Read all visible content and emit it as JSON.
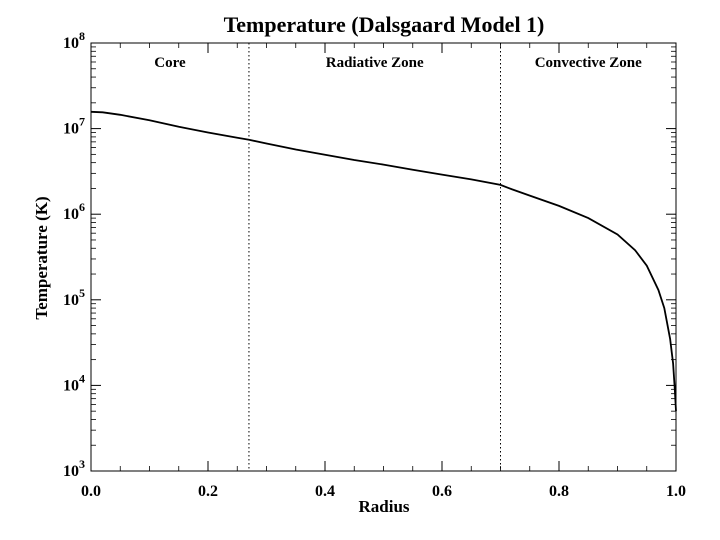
{
  "chart_data": {
    "type": "line",
    "title": "Temperature (Dalsgaard Model 1)",
    "xlabel": "Radius",
    "ylabel": "Temperature (K)",
    "xlim": [
      0.0,
      1.0
    ],
    "ylim": [
      1000,
      100000000
    ],
    "yscale": "log",
    "x_ticks": [
      "0.0",
      "0.2",
      "0.4",
      "0.6",
      "0.8",
      "1.0"
    ],
    "y_ticks": [
      {
        "base": "10",
        "exp": "3"
      },
      {
        "base": "10",
        "exp": "4"
      },
      {
        "base": "10",
        "exp": "5"
      },
      {
        "base": "10",
        "exp": "6"
      },
      {
        "base": "10",
        "exp": "7"
      },
      {
        "base": "10",
        "exp": "8"
      }
    ],
    "zones": [
      {
        "name": "Core",
        "from": 0.0,
        "to": 0.27
      },
      {
        "name": "Radiative Zone",
        "from": 0.27,
        "to": 0.7
      },
      {
        "name": "Convective Zone",
        "from": 0.7,
        "to": 1.0
      }
    ],
    "boundaries": [
      0.27,
      0.7
    ],
    "series": [
      {
        "name": "Temperature",
        "x": [
          0.0,
          0.02,
          0.05,
          0.1,
          0.15,
          0.2,
          0.25,
          0.27,
          0.3,
          0.35,
          0.4,
          0.45,
          0.5,
          0.55,
          0.6,
          0.65,
          0.7,
          0.72,
          0.75,
          0.8,
          0.85,
          0.9,
          0.93,
          0.95,
          0.97,
          0.98,
          0.99,
          0.995,
          0.998,
          1.0
        ],
        "y": [
          15700000,
          15500000,
          14500000,
          12500000,
          10500000,
          9000000,
          7800000,
          7400000,
          6700000,
          5700000,
          4950000,
          4300000,
          3800000,
          3300000,
          2900000,
          2550000,
          2200000,
          1950000,
          1650000,
          1250000,
          900000,
          580000,
          380000,
          250000,
          130000,
          80000,
          35000,
          18000,
          9000,
          5000
        ]
      }
    ]
  }
}
